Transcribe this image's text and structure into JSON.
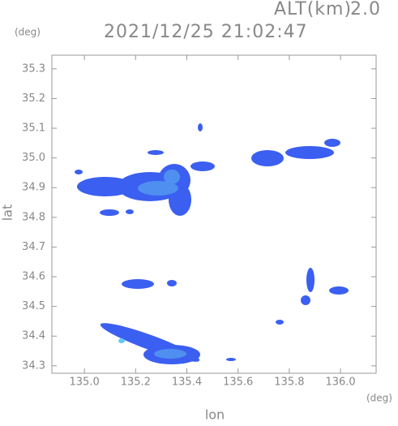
{
  "chart_data": {
    "type": "map",
    "altitude_label": "ALT(km)",
    "altitude": "2.0",
    "title": "2021/12/25 21:02:47",
    "y_unit": "(deg)",
    "x_unit": "(deg)",
    "ylabel": "lat",
    "xlabel": "lon",
    "xlim": [
      134.873,
      136.139
    ],
    "ylim": [
      34.275,
      35.346
    ],
    "xticks": [
      {
        "value": 135,
        "label": "135.0"
      },
      135.2,
      135.4,
      135.6,
      135.8,
      {
        "value": 136,
        "label": "136.0"
      }
    ],
    "yticks": [
      34.3,
      34.4,
      34.5,
      34.6,
      34.7,
      34.8,
      34.9,
      {
        "value": 35,
        "label": "35.0"
      },
      35.1,
      35.2,
      35.3
    ]
  }
}
